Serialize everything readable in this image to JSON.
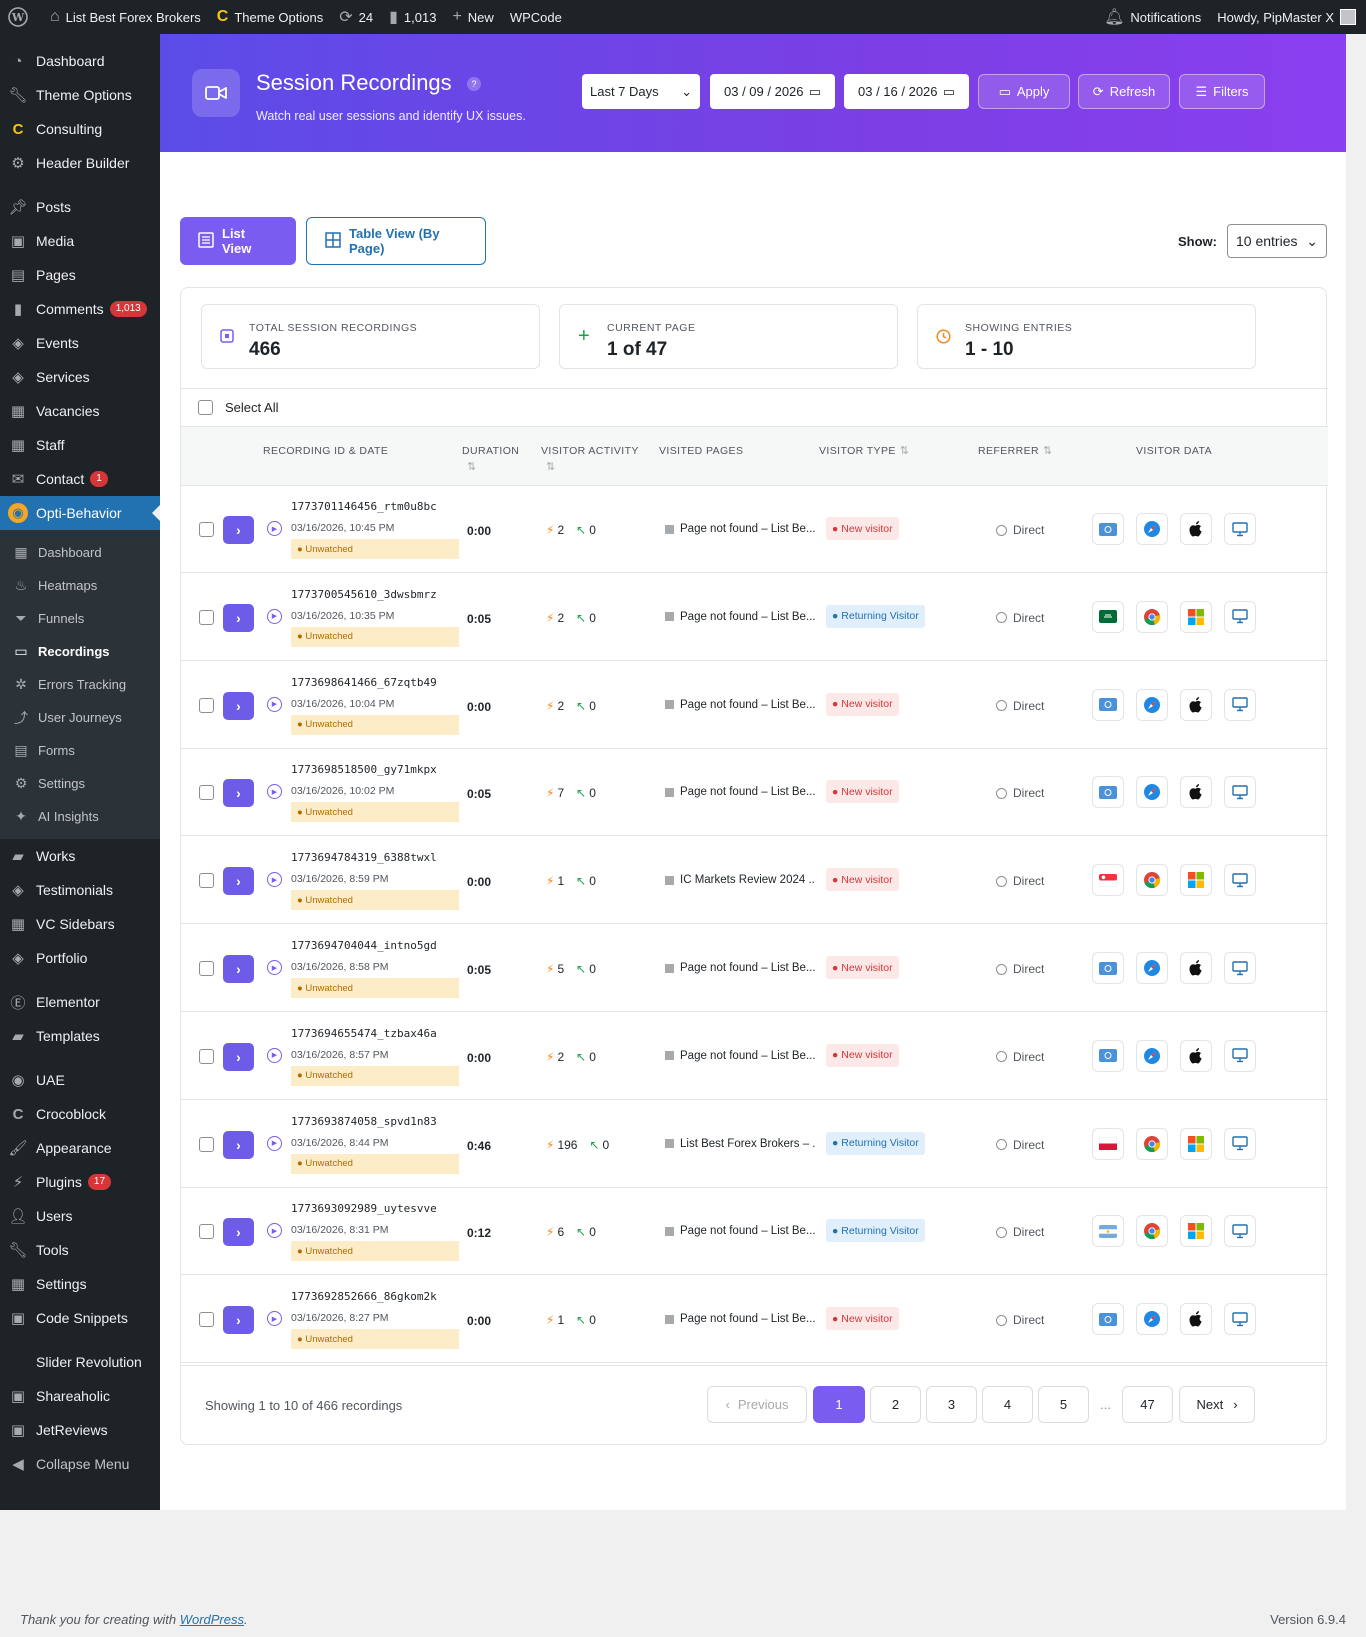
{
  "adminbar": {
    "site": "List Best Forex Brokers",
    "theme_options": "Theme Options",
    "updates": "24",
    "comments": "1,013",
    "new": "New",
    "wpcode": "WPCode",
    "notifications": "Notifications",
    "howdy": "Howdy, PipMaster X"
  },
  "menu": [
    {
      "label": "Dashboard",
      "icon": "dashboard-icon"
    },
    {
      "label": "Theme Options",
      "icon": "wrench-icon"
    },
    {
      "label": "Consulting",
      "icon": "consulting-c-icon"
    },
    {
      "label": "Header Builder",
      "icon": "gear-icon"
    },
    {
      "label": "Posts",
      "icon": "pin-icon",
      "gap": true
    },
    {
      "label": "Media",
      "icon": "media-icon"
    },
    {
      "label": "Pages",
      "icon": "pages-icon"
    },
    {
      "label": "Comments",
      "icon": "comment-icon",
      "badge": "1,013"
    },
    {
      "label": "Events",
      "icon": "tag-icon"
    },
    {
      "label": "Services",
      "icon": "tag-icon"
    },
    {
      "label": "Vacancies",
      "icon": "table-icon"
    },
    {
      "label": "Staff",
      "icon": "table-icon"
    },
    {
      "label": "Contact",
      "icon": "mail-icon",
      "badge": "1"
    },
    {
      "label": "Opti-Behavior",
      "icon": "opti-logo-icon",
      "active": true
    }
  ],
  "submenu": [
    {
      "label": "Dashboard",
      "icon": "grid-icon"
    },
    {
      "label": "Heatmaps",
      "icon": "flame-icon"
    },
    {
      "label": "Funnels",
      "icon": "funnel-icon"
    },
    {
      "label": "Recordings",
      "icon": "video-icon",
      "current": true
    },
    {
      "label": "Errors Tracking",
      "icon": "bug-icon"
    },
    {
      "label": "User Journeys",
      "icon": "route-icon"
    },
    {
      "label": "Forms",
      "icon": "form-icon"
    },
    {
      "label": "Settings",
      "icon": "gear-icon"
    },
    {
      "label": "AI Insights",
      "icon": "sparkle-icon"
    }
  ],
  "menu2": [
    {
      "label": "Works",
      "icon": "folder-icon"
    },
    {
      "label": "Testimonials",
      "icon": "tag-icon"
    },
    {
      "label": "VC Sidebars",
      "icon": "table-icon"
    },
    {
      "label": "Portfolio",
      "icon": "tag-icon"
    },
    {
      "label": "Elementor",
      "icon": "elementor-icon",
      "gap": true
    },
    {
      "label": "Templates",
      "icon": "folder-icon"
    },
    {
      "label": "UAE",
      "icon": "uae-icon",
      "gap": true
    },
    {
      "label": "Crocoblock",
      "icon": "crocoblock-icon"
    },
    {
      "label": "Appearance",
      "icon": "brush-icon"
    },
    {
      "label": "Plugins",
      "icon": "plugin-icon",
      "badge": "17"
    },
    {
      "label": "Users",
      "icon": "user-icon"
    },
    {
      "label": "Tools",
      "icon": "wrench-icon"
    },
    {
      "label": "Settings",
      "icon": "settings-icon"
    },
    {
      "label": "Code Snippets",
      "icon": "code-icon"
    },
    {
      "label": "Slider Revolution",
      "icon": "",
      "gap": true
    },
    {
      "label": "Shareaholic",
      "icon": "share-icon"
    },
    {
      "label": "JetReviews",
      "icon": "jet-icon"
    },
    {
      "label": "Collapse Menu",
      "icon": "collapse-icon",
      "dim": true
    }
  ],
  "header": {
    "title": "Session Recordings",
    "help": "?",
    "subtitle": "Watch real user sessions and identify UX issues.",
    "range": "Last 7 Days",
    "date_from": "03 / 09 / 2026",
    "date_to": "03 / 16 / 2026",
    "apply": "Apply",
    "refresh": "Refresh",
    "filters": "Filters"
  },
  "views": {
    "list": "List View",
    "table": "Table View (By Page)",
    "show_label": "Show:",
    "show_value": "10 entries"
  },
  "stats": [
    {
      "label": "TOTAL SESSION RECORDINGS",
      "value": "466"
    },
    {
      "label": "CURRENT PAGE",
      "value": "1 of 47"
    },
    {
      "label": "SHOWING ENTRIES",
      "value": "1 - 10"
    }
  ],
  "select_all": "Select All",
  "columns": {
    "rec": "RECORDING ID & DATE",
    "dur": "DURATION",
    "act": "VISITOR ACTIVITY",
    "pages": "VISITED PAGES",
    "type": "VISITOR TYPE",
    "ref": "REFERRER",
    "data": "VISITOR DATA"
  },
  "rows": [
    {
      "id": "1773701146456_rtm0u8bc",
      "date": "03/16/2026, 10:45 PM",
      "status": "Unwatched",
      "duration": "0:00",
      "clicks": "2",
      "moves": "0",
      "page": "Page not found – List Be...",
      "type": "New visitor",
      "ref": "Direct",
      "flag": "un",
      "browser": "safari",
      "os": "apple"
    },
    {
      "id": "1773700545610_3dwsbmrz",
      "date": "03/16/2026, 10:35 PM",
      "status": "Unwatched",
      "duration": "0:05",
      "clicks": "2",
      "moves": "0",
      "page": "Page not found – List Be...",
      "type": "Returning Visitor",
      "ref": "Direct",
      "flag": "sa",
      "browser": "chrome",
      "os": "windows"
    },
    {
      "id": "1773698641466_67zqtb49",
      "date": "03/16/2026, 10:04 PM",
      "status": "Unwatched",
      "duration": "0:00",
      "clicks": "2",
      "moves": "0",
      "page": "Page not found – List Be...",
      "type": "New visitor",
      "ref": "Direct",
      "flag": "un",
      "browser": "safari",
      "os": "apple"
    },
    {
      "id": "1773698518500_gy71mkpx",
      "date": "03/16/2026, 10:02 PM",
      "status": "Unwatched",
      "duration": "0:05",
      "clicks": "7",
      "moves": "0",
      "page": "Page not found – List Be...",
      "type": "New visitor",
      "ref": "Direct",
      "flag": "un",
      "browser": "safari",
      "os": "apple"
    },
    {
      "id": "1773694784319_6388twxl",
      "date": "03/16/2026, 8:59 PM",
      "status": "Unwatched",
      "duration": "0:00",
      "clicks": "1",
      "moves": "0",
      "page": "IC Markets Review 2024 ...",
      "type": "New visitor",
      "ref": "Direct",
      "flag": "sg",
      "browser": "chrome",
      "os": "windows"
    },
    {
      "id": "1773694704044_intno5gd",
      "date": "03/16/2026, 8:58 PM",
      "status": "Unwatched",
      "duration": "0:05",
      "clicks": "5",
      "moves": "0",
      "page": "Page not found – List Be...",
      "type": "New visitor",
      "ref": "Direct",
      "flag": "un",
      "browser": "safari",
      "os": "apple"
    },
    {
      "id": "1773694655474_tzbax46a",
      "date": "03/16/2026, 8:57 PM",
      "status": "Unwatched",
      "duration": "0:00",
      "clicks": "2",
      "moves": "0",
      "page": "Page not found – List Be...",
      "type": "New visitor",
      "ref": "Direct",
      "flag": "un",
      "browser": "safari",
      "os": "apple"
    },
    {
      "id": "1773693874058_spvd1n83",
      "date": "03/16/2026, 8:44 PM",
      "status": "Unwatched",
      "duration": "0:46",
      "clicks": "196",
      "moves": "0",
      "page": "List Best Forex Brokers – ...",
      "type": "Returning Visitor",
      "ref": "Direct",
      "flag": "pl",
      "browser": "chrome",
      "os": "windows"
    },
    {
      "id": "1773693092989_uytesvve",
      "date": "03/16/2026, 8:31 PM",
      "status": "Unwatched",
      "duration": "0:12",
      "clicks": "6",
      "moves": "0",
      "page": "Page not found – List Be...",
      "type": "Returning Visitor",
      "ref": "Direct",
      "flag": "ar",
      "browser": "chrome",
      "os": "windows"
    },
    {
      "id": "1773692852666_86gkom2k",
      "date": "03/16/2026, 8:27 PM",
      "status": "Unwatched",
      "duration": "0:00",
      "clicks": "1",
      "moves": "0",
      "page": "Page not found – List Be...",
      "type": "New visitor",
      "ref": "Direct",
      "flag": "un",
      "browser": "safari",
      "os": "apple"
    }
  ],
  "pagination": {
    "info": "Showing 1 to 10 of 466 recordings",
    "prev": "Previous",
    "pages": [
      "1",
      "2",
      "3",
      "4",
      "5"
    ],
    "ellipsis": "...",
    "last": "47",
    "next": "Next"
  },
  "footer": {
    "thanks": "Thank you for creating with ",
    "wp": "WordPress",
    "dot": ".",
    "version": "Version 6.9.4"
  },
  "colors": {
    "accent": "#7b5cf0",
    "wp_blue": "#2271b1",
    "sidebar": "#1d2327"
  }
}
